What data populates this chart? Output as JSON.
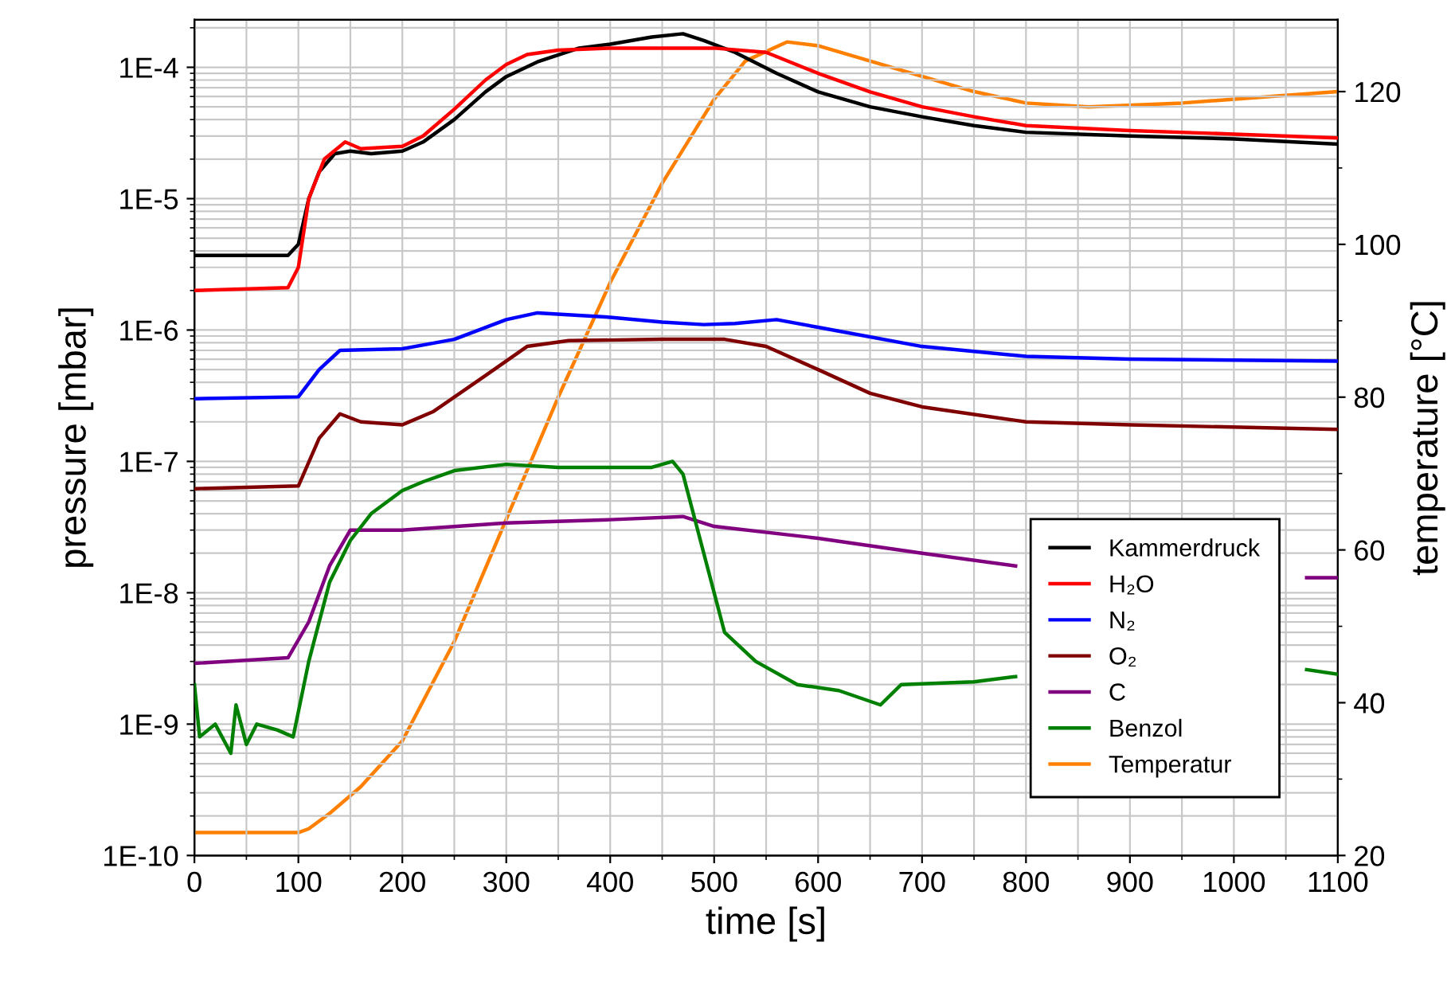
{
  "chart_data": {
    "type": "line",
    "xlabel": "time [s]",
    "ylabel": "pressure [mbar]",
    "y2label": "temperature [°C]",
    "xlim": [
      0,
      1100
    ],
    "xticks": [
      0,
      100,
      200,
      300,
      400,
      500,
      600,
      700,
      800,
      900,
      1000,
      1100
    ],
    "log": "y",
    "ylim": [
      1e-10,
      0.00023
    ],
    "yticks": [
      {
        "value": 1e-10,
        "label": "1E-10"
      },
      {
        "value": 1e-09,
        "label": "1E-9"
      },
      {
        "value": 1e-08,
        "label": "1E-8"
      },
      {
        "value": 1e-07,
        "label": "1E-7"
      },
      {
        "value": 1e-06,
        "label": "1E-6"
      },
      {
        "value": 1e-05,
        "label": "1E-5"
      },
      {
        "value": 0.0001,
        "label": "1E-4"
      }
    ],
    "y2lim": [
      20,
      129.4
    ],
    "y2ticks": [
      20,
      40,
      60,
      80,
      100,
      120
    ],
    "grid": true,
    "legend": "bottom right",
    "line_style": "solid",
    "marker": "none",
    "series": [
      {
        "name": "Kammerdruck",
        "color": "#000000",
        "x": [
          0,
          90,
          100,
          110,
          120,
          135,
          150,
          170,
          200,
          220,
          250,
          280,
          300,
          330,
          370,
          400,
          440,
          470,
          490,
          520,
          560,
          600,
          650,
          700,
          750,
          800,
          900,
          1000,
          1100
        ],
        "values": [
          3.7e-06,
          3.7e-06,
          4.5e-06,
          1e-05,
          1.6e-05,
          2.2e-05,
          2.3e-05,
          2.2e-05,
          2.3e-05,
          2.7e-05,
          4e-05,
          6.5e-05,
          8.5e-05,
          0.00011,
          0.00014,
          0.00015,
          0.00017,
          0.00018,
          0.00016,
          0.00013,
          9e-05,
          6.5e-05,
          5e-05,
          4.2e-05,
          3.6e-05,
          3.2e-05,
          3e-05,
          2.85e-05,
          2.6e-05
        ]
      },
      {
        "name": "H₂O",
        "color": "#ff0000",
        "x": [
          0,
          90,
          100,
          110,
          125,
          145,
          160,
          200,
          220,
          250,
          280,
          300,
          320,
          350,
          400,
          500,
          550,
          600,
          650,
          700,
          750,
          800,
          900,
          1000,
          1100
        ],
        "values": [
          2e-06,
          2.1e-06,
          3e-06,
          1e-05,
          2e-05,
          2.7e-05,
          2.4e-05,
          2.5e-05,
          3e-05,
          4.8e-05,
          8e-05,
          0.000105,
          0.000125,
          0.000135,
          0.00014,
          0.00014,
          0.00013,
          9e-05,
          6.5e-05,
          5e-05,
          4.2e-05,
          3.6e-05,
          3.3e-05,
          3.1e-05,
          2.9e-05
        ]
      },
      {
        "name": "N₂",
        "color": "#0000ff",
        "x": [
          0,
          100,
          120,
          140,
          200,
          250,
          300,
          330,
          400,
          450,
          490,
          520,
          560,
          600,
          700,
          800,
          900,
          1100
        ],
        "values": [
          3e-07,
          3.1e-07,
          5e-07,
          7e-07,
          7.2e-07,
          8.5e-07,
          1.2e-06,
          1.35e-06,
          1.25e-06,
          1.15e-06,
          1.1e-06,
          1.12e-06,
          1.2e-06,
          1.05e-06,
          7.5e-07,
          6.3e-07,
          6e-07,
          5.8e-07
        ]
      },
      {
        "name": "O₂",
        "color": "#800000",
        "x": [
          0,
          100,
          120,
          140,
          160,
          200,
          230,
          280,
          320,
          360,
          450,
          510,
          550,
          600,
          650,
          700,
          800,
          900,
          1100
        ],
        "values": [
          6.2e-08,
          6.5e-08,
          1.5e-07,
          2.3e-07,
          2e-07,
          1.9e-07,
          2.4e-07,
          4.5e-07,
          7.5e-07,
          8.3e-07,
          8.5e-07,
          8.5e-07,
          7.5e-07,
          5e-07,
          3.3e-07,
          2.6e-07,
          2e-07,
          1.9e-07,
          1.75e-07
        ]
      },
      {
        "name": "C",
        "color": "#800080",
        "x": [
          0,
          90,
          110,
          130,
          150,
          200,
          300,
          400,
          470,
          500,
          600,
          700,
          790,
          812,
          1070,
          1100
        ],
        "values": [
          2.9e-09,
          3.2e-09,
          6e-09,
          1.6e-08,
          3e-08,
          3e-08,
          3.4e-08,
          3.6e-08,
          3.8e-08,
          3.2e-08,
          2.6e-08,
          2e-08,
          1.6e-08,
          null,
          1.3e-08,
          1.3e-08
        ]
      },
      {
        "name": "Benzol",
        "color": "#008000",
        "x": [
          0,
          5,
          20,
          35,
          40,
          50,
          60,
          80,
          95,
          110,
          130,
          150,
          170,
          200,
          220,
          250,
          300,
          350,
          400,
          440,
          460,
          470,
          490,
          510,
          540,
          580,
          620,
          660,
          680,
          750,
          790,
          812,
          1070,
          1100
        ],
        "values": [
          2e-09,
          8e-10,
          1e-09,
          6e-10,
          1.4e-09,
          7e-10,
          1e-09,
          9e-10,
          8e-10,
          3e-09,
          1.2e-08,
          2.5e-08,
          4e-08,
          6e-08,
          7e-08,
          8.5e-08,
          9.5e-08,
          9e-08,
          9e-08,
          9e-08,
          1e-07,
          8e-08,
          2e-08,
          5e-09,
          3e-09,
          2e-09,
          1.8e-09,
          1.4e-09,
          2e-09,
          2.1e-09,
          2.3e-09,
          null,
          2.6e-09,
          2.4e-09
        ]
      },
      {
        "name": "Temperatur",
        "color": "#ff8000",
        "axis": "y2",
        "x": [
          0,
          100,
          110,
          130,
          160,
          200,
          250,
          300,
          350,
          400,
          450,
          500,
          530,
          570,
          600,
          650,
          700,
          750,
          800,
          860,
          950,
          1050,
          1100
        ],
        "values": [
          23,
          23,
          23.5,
          25.5,
          29,
          35,
          48,
          64,
          80,
          95,
          108,
          119,
          124,
          126.5,
          126,
          124,
          122,
          120,
          118.5,
          118,
          118.5,
          119.5,
          120
        ]
      }
    ]
  }
}
